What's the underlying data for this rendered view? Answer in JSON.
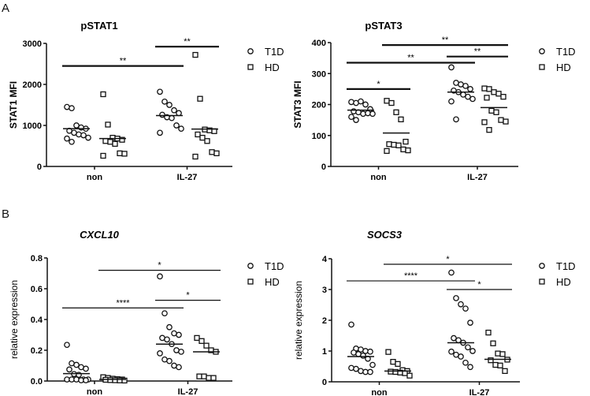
{
  "panel_labels": [
    "A",
    "B"
  ],
  "chart_data": [
    {
      "type": "scatter",
      "title": "pSTAT1",
      "italic_title": false,
      "ylabel": "STAT1 MFI",
      "ylim": [
        0,
        3000
      ],
      "yticks": [
        "0",
        "1000",
        "2000",
        "3000"
      ],
      "ytick_values": [
        0,
        1000,
        2000,
        3000
      ],
      "categories": [
        "non",
        "IL-27"
      ],
      "legend": [
        "T1D",
        "HD"
      ],
      "legend_placement": "right",
      "groups": [
        {
          "category": "non",
          "series": "T1D",
          "values": [
            1450,
            1420,
            1000,
            950,
            920,
            870,
            820,
            780,
            760,
            700,
            680,
            600
          ],
          "median": 920
        },
        {
          "category": "non",
          "series": "HD",
          "values": [
            1760,
            1020,
            700,
            680,
            650,
            620,
            600,
            550,
            320,
            310,
            260
          ],
          "median": 680
        },
        {
          "category": "IL-27",
          "series": "T1D",
          "values": [
            1820,
            1580,
            1500,
            1370,
            1300,
            1260,
            1200,
            1180,
            1000,
            920,
            820
          ],
          "median": 1240
        },
        {
          "category": "IL-27",
          "series": "HD",
          "values": [
            2720,
            1650,
            900,
            880,
            860,
            780,
            700,
            620,
            350,
            320,
            240
          ],
          "median": 910
        }
      ],
      "significance": [
        {
          "from": 0,
          "to": 2,
          "y": 2450,
          "label": "**",
          "thick": true
        },
        {
          "from": 2,
          "to": 3,
          "y": 2920,
          "label": "**",
          "thick": true
        }
      ]
    },
    {
      "type": "scatter",
      "title": "pSTAT3",
      "italic_title": false,
      "ylabel": "STAT3 MFI",
      "ylim": [
        0,
        400
      ],
      "yticks": [
        "0",
        "100",
        "200",
        "300",
        "400"
      ],
      "ytick_values": [
        0,
        100,
        200,
        300,
        400
      ],
      "categories": [
        "non",
        "IL-27"
      ],
      "legend": [
        "T1D",
        "HD"
      ],
      "legend_placement": "right",
      "groups": [
        {
          "category": "non",
          "series": "T1D",
          "values": [
            208,
            205,
            210,
            200,
            185,
            178,
            175,
            170,
            172,
            170,
            160,
            150
          ],
          "median": 182
        },
        {
          "category": "non",
          "series": "HD",
          "values": [
            212,
            205,
            175,
            152,
            80,
            72,
            70,
            68,
            55,
            52,
            50
          ],
          "median": 108
        },
        {
          "category": "IL-27",
          "series": "T1D",
          "values": [
            320,
            270,
            265,
            260,
            250,
            245,
            240,
            232,
            225,
            218,
            210,
            152
          ],
          "median": 240
        },
        {
          "category": "IL-27",
          "series": "HD",
          "values": [
            252,
            250,
            240,
            235,
            225,
            222,
            180,
            175,
            150,
            145,
            143,
            118
          ],
          "median": 190
        }
      ],
      "significance": [
        {
          "from": 0,
          "to": 1,
          "y": 250,
          "label": "*",
          "thick": true
        },
        {
          "from": 0,
          "to": 2,
          "y": 335,
          "label": "**",
          "thick": true
        },
        {
          "from": 1,
          "to": 3,
          "y": 392,
          "label": "**",
          "thick": true
        },
        {
          "from": 2,
          "to": 3,
          "y": 355,
          "label": "**",
          "thick": true
        }
      ]
    },
    {
      "type": "scatter",
      "title": "CXCL10",
      "italic_title": true,
      "ylabel": "relative expression",
      "ylim": [
        0,
        0.8
      ],
      "yticks": [
        "0.0",
        "0.2",
        "0.4",
        "0.6",
        "0.8"
      ],
      "ytick_values": [
        0,
        0.2,
        0.4,
        0.6,
        0.8
      ],
      "categories": [
        "non",
        "IL-27"
      ],
      "legend": [
        "T1D",
        "HD"
      ],
      "legend_placement": "right",
      "groups": [
        {
          "category": "non",
          "series": "T1D",
          "values": [
            0.235,
            0.115,
            0.105,
            0.09,
            0.08,
            0.075,
            0.045,
            0.04,
            0.01,
            0.01,
            0.01,
            0.01,
            0.01,
            0.005,
            0.005
          ],
          "median": 0.048
        },
        {
          "category": "non",
          "series": "HD",
          "values": [
            0.025,
            0.02,
            0.015,
            0.012,
            0.01,
            0.008,
            0.006,
            0.005,
            0.004,
            0.003
          ],
          "median": 0.01
        },
        {
          "category": "IL-27",
          "series": "T1D",
          "values": [
            0.68,
            0.44,
            0.35,
            0.31,
            0.3,
            0.28,
            0.27,
            0.24,
            0.2,
            0.19,
            0.18,
            0.14,
            0.13,
            0.1,
            0.09
          ],
          "median": 0.24
        },
        {
          "category": "IL-27",
          "series": "HD",
          "values": [
            0.28,
            0.26,
            0.23,
            0.2,
            0.19,
            0.03,
            0.03,
            0.02,
            0.02
          ],
          "median": 0.19
        }
      ],
      "significance": [
        {
          "from": 0,
          "to": 2,
          "y": 0.475,
          "label": "****",
          "thick": false
        },
        {
          "from": 1,
          "to": 3,
          "y": 0.72,
          "label": "*",
          "thick": false
        },
        {
          "from": 2,
          "to": 3,
          "y": 0.525,
          "label": "*",
          "thick": false
        }
      ]
    },
    {
      "type": "scatter",
      "title": "SOCS3",
      "italic_title": true,
      "ylabel": "relative expression",
      "ylim": [
        0,
        4
      ],
      "yticks": [
        "0",
        "1",
        "2",
        "3",
        "4"
      ],
      "ytick_values": [
        0,
        1,
        2,
        3,
        4
      ],
      "categories": [
        "non",
        "IL-27"
      ],
      "legend": [
        "T1D",
        "HD"
      ],
      "legend_placement": "right",
      "groups": [
        {
          "category": "non",
          "series": "T1D",
          "values": [
            1.86,
            1.08,
            1.05,
            1.0,
            0.98,
            0.95,
            0.9,
            0.85,
            0.75,
            0.55,
            0.45,
            0.42,
            0.35,
            0.32,
            0.32
          ],
          "median": 0.82
        },
        {
          "category": "non",
          "series": "HD",
          "values": [
            0.97,
            0.65,
            0.58,
            0.38,
            0.35,
            0.33,
            0.32,
            0.3,
            0.28,
            0.2
          ],
          "median": 0.35
        },
        {
          "category": "IL-27",
          "series": "T1D",
          "values": [
            3.55,
            2.72,
            2.52,
            2.38,
            1.92,
            1.42,
            1.35,
            1.27,
            1.12,
            1.0,
            0.98,
            0.88,
            0.82,
            0.62,
            0.48
          ],
          "median": 1.27
        },
        {
          "category": "IL-27",
          "series": "HD",
          "values": [
            1.6,
            1.25,
            0.92,
            0.9,
            0.72,
            0.7,
            0.55,
            0.53,
            0.35
          ],
          "median": 0.73
        }
      ],
      "significance": [
        {
          "from": 0,
          "to": 2,
          "y": 3.28,
          "label": "****",
          "thick": false
        },
        {
          "from": 1,
          "to": 3,
          "y": 3.82,
          "label": "*",
          "thick": false
        },
        {
          "from": 2,
          "to": 3,
          "y": 3.0,
          "label": "*",
          "thick": false
        }
      ]
    }
  ]
}
